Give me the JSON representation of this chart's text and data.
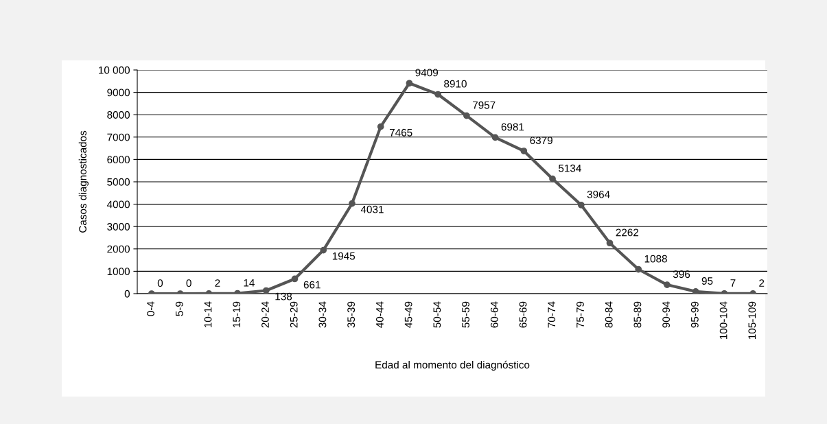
{
  "chart_data": {
    "type": "line",
    "xlabel": "Edad al momento del diagnóstico",
    "ylabel": "Casos diagnosticados",
    "categories": [
      "0-4",
      "5-9",
      "10-14",
      "15-19",
      "20-24",
      "25-29",
      "30-34",
      "35-39",
      "40-44",
      "45-49",
      "50-54",
      "55-59",
      "60-64",
      "65-69",
      "70-74",
      "75-79",
      "80-84",
      "85-89",
      "90-94",
      "95-99",
      "100-104",
      "105-109"
    ],
    "series": [
      {
        "color": "#555555",
        "values": [
          0,
          0,
          2,
          14,
          138,
          661,
          1945,
          4031,
          7465,
          9409,
          8910,
          7957,
          6981,
          6379,
          5134,
          3964,
          2262,
          1088,
          396,
          95,
          7,
          2
        ]
      }
    ],
    "ylim": [
      0,
      10000
    ],
    "yticks": [
      0,
      1000,
      2000,
      3000,
      4000,
      5000,
      6000,
      7000,
      8000,
      9000,
      {
        "value": 10000,
        "label": "10 000"
      }
    ],
    "grid": "y",
    "marker": "circle",
    "line_style": "solid",
    "data_labels": true
  }
}
